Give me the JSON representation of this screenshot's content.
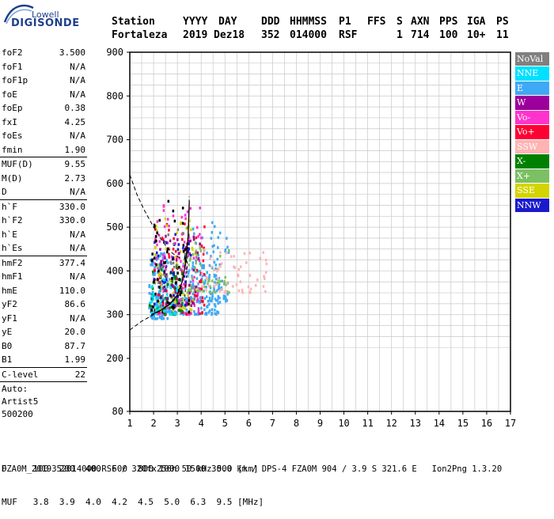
{
  "logo": {
    "top_text": "Lowell",
    "main_text": "DIGISONDE"
  },
  "header": {
    "labels": [
      "Station",
      "YYYY",
      "DAY",
      "DDD",
      "HHMMSS",
      "P1",
      "FFS",
      "S",
      "AXN",
      "PPS",
      "IGA",
      "PS"
    ],
    "values": [
      "Fortaleza",
      "2019",
      "Dez18",
      "352",
      "014000",
      "RSF",
      "",
      "1",
      "714",
      "100",
      "10+",
      "11"
    ]
  },
  "params": [
    {
      "label": "foF2",
      "value": "3.500"
    },
    {
      "label": "foF1",
      "value": "N/A"
    },
    {
      "label": "foF1p",
      "value": "N/A"
    },
    {
      "label": "foE",
      "value": "N/A"
    },
    {
      "label": "foEp",
      "value": "0.38"
    },
    {
      "label": "fxI",
      "value": "4.25"
    },
    {
      "label": "foEs",
      "value": "N/A"
    },
    {
      "label": "fmin",
      "value": "1.90",
      "sep": true
    },
    {
      "label": "MUF(D)",
      "value": "9.55"
    },
    {
      "label": "M(D)",
      "value": "2.73"
    },
    {
      "label": "D",
      "value": "N/A",
      "sep": true
    },
    {
      "label": "h`F",
      "value": "330.0"
    },
    {
      "label": "h`F2",
      "value": "330.0"
    },
    {
      "label": "h`E",
      "value": "N/A"
    },
    {
      "label": "h`Es",
      "value": "N/A",
      "sep": true
    },
    {
      "label": "hmF2",
      "value": "377.4"
    },
    {
      "label": "hmF1",
      "value": "N/A"
    },
    {
      "label": "hmE",
      "value": "110.0"
    },
    {
      "label": "yF2",
      "value": "86.6"
    },
    {
      "label": "yF1",
      "value": "N/A"
    },
    {
      "label": "yE",
      "value": "20.0"
    },
    {
      "label": "B0",
      "value": "87.7"
    },
    {
      "label": "B1",
      "value": "1.99",
      "sep": true
    },
    {
      "label": "C-level",
      "value": "22",
      "sep": true
    }
  ],
  "auto": {
    "line1": "Auto:",
    "line2": "Artist5",
    "line3": "500200"
  },
  "legend": [
    {
      "label": "NoVal",
      "color": "#808080"
    },
    {
      "label": "NNE",
      "color": "#00e0ff"
    },
    {
      "label": "E",
      "color": "#3fa9f5"
    },
    {
      "label": "W",
      "color": "#9b009b"
    },
    {
      "label": "Vo-",
      "color": "#ff33cc"
    },
    {
      "label": "Vo+",
      "color": "#ff0033"
    },
    {
      "label": "SSW",
      "color": "#ffb3b3"
    },
    {
      "label": "X-",
      "color": "#008000"
    },
    {
      "label": "X+",
      "color": "#7cc063"
    },
    {
      "label": "SSE",
      "color": "#d4d400"
    },
    {
      "label": "NNW",
      "color": "#1a1acc"
    }
  ],
  "bottom": {
    "d_row": "D     100  200  400  600  800 1000 1500 3000 [km]",
    "muf_row": "MUF   3.8  3.9  4.0  4.2  4.5  5.0  6.3  9.5 [MHz]"
  },
  "footer": "FZA0M_2019352014000.RSF / 320fx256h 50 kHz 5.0 km / DPS-4 FZA0M 904 / 3.9 S 321.6 E   Ion2Png 1.3.20",
  "chart_data": {
    "type": "scatter",
    "x_ticks": [
      1,
      2,
      3,
      4,
      5,
      6,
      7,
      8,
      9,
      10,
      11,
      12,
      13,
      14,
      15,
      16,
      17
    ],
    "y_ticks": [
      80,
      200,
      300,
      400,
      500,
      600,
      700,
      800,
      900
    ],
    "xlim": [
      1,
      17
    ],
    "ylim": [
      80,
      900
    ],
    "grid": true,
    "legend_position": "right",
    "cloud": [
      {
        "x0": 1.8,
        "x1": 2.6,
        "y0": 290,
        "y1": 440,
        "color": "#3fa9f5",
        "n": 140
      },
      {
        "x0": 2.5,
        "x1": 4.8,
        "y0": 300,
        "y1": 420,
        "color": "#3fa9f5",
        "n": 180
      },
      {
        "x0": 3.6,
        "x1": 5.2,
        "y0": 330,
        "y1": 520,
        "color": "#3fa9f5",
        "n": 70
      },
      {
        "x0": 2.0,
        "x1": 4.0,
        "y0": 300,
        "y1": 560,
        "color": "#ff33cc",
        "n": 110
      },
      {
        "x0": 2.0,
        "x1": 4.2,
        "y0": 300,
        "y1": 520,
        "color": "#ff0033",
        "n": 90
      },
      {
        "x0": 2.0,
        "x1": 3.8,
        "y0": 310,
        "y1": 520,
        "color": "#d4d400",
        "n": 80
      },
      {
        "x0": 1.8,
        "x1": 3.2,
        "y0": 300,
        "y1": 430,
        "color": "#008000",
        "n": 60
      },
      {
        "x0": 3.2,
        "x1": 5.2,
        "y0": 350,
        "y1": 470,
        "color": "#7cc063",
        "n": 60
      },
      {
        "x0": 2.2,
        "x1": 4.0,
        "y0": 320,
        "y1": 480,
        "color": "#9b009b",
        "n": 50
      },
      {
        "x0": 4.0,
        "x1": 6.8,
        "y0": 350,
        "y1": 450,
        "color": "#ffb3b3",
        "n": 60
      },
      {
        "x0": 2.0,
        "x1": 3.6,
        "y0": 320,
        "y1": 500,
        "color": "#1a1acc",
        "n": 40
      },
      {
        "x0": 1.9,
        "x1": 3.5,
        "y0": 300,
        "y1": 560,
        "color": "#000000",
        "n": 60
      },
      {
        "x0": 1.8,
        "x1": 3.0,
        "y0": 300,
        "y1": 380,
        "color": "#00e0ff",
        "n": 40
      },
      {
        "x0": 2.2,
        "x1": 3.8,
        "y0": 320,
        "y1": 500,
        "color": "#808080",
        "n": 25
      }
    ],
    "profile_trace": [
      {
        "x": 1.9,
        "y": 300
      },
      {
        "x": 2.3,
        "y": 310
      },
      {
        "x": 2.7,
        "y": 325
      },
      {
        "x": 3.0,
        "y": 345
      },
      {
        "x": 3.2,
        "y": 375
      },
      {
        "x": 3.35,
        "y": 420
      },
      {
        "x": 3.45,
        "y": 480
      },
      {
        "x": 3.5,
        "y": 560
      }
    ],
    "profile_dashed": [
      {
        "x": 1.0,
        "y": 620
      },
      {
        "x": 1.3,
        "y": 575
      },
      {
        "x": 1.6,
        "y": 540
      },
      {
        "x": 2.0,
        "y": 500
      },
      {
        "x": 2.4,
        "y": 465
      },
      {
        "x": 2.8,
        "y": 440
      },
      {
        "x": 3.1,
        "y": 430
      }
    ],
    "profile_dashed_low": [
      {
        "x": 1.0,
        "y": 265
      },
      {
        "x": 1.5,
        "y": 285
      },
      {
        "x": 2.0,
        "y": 300
      },
      {
        "x": 2.6,
        "y": 320
      },
      {
        "x": 3.0,
        "y": 340
      },
      {
        "x": 3.2,
        "y": 360
      }
    ],
    "profile_dashed_tail": [
      {
        "x": 3.3,
        "y": 330
      },
      {
        "x": 3.4,
        "y": 400
      },
      {
        "x": 3.45,
        "y": 470
      },
      {
        "x": 3.5,
        "y": 570
      }
    ]
  }
}
